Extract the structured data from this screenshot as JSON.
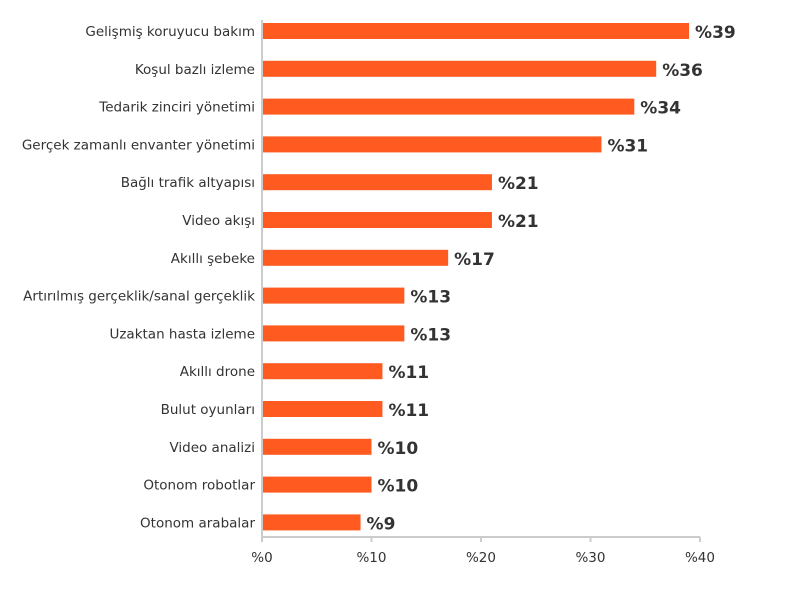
{
  "chart_data": {
    "type": "bar",
    "orientation": "horizontal",
    "categories": [
      "Gelişmiş koruyucu bakım",
      "Koşul bazlı izleme",
      "Tedarik zinciri yönetimi",
      "Gerçek zamanlı envanter yönetimi",
      "Bağlı trafik altyapısı",
      "Video akışı",
      "Akıllı şebeke",
      "Artırılmış gerçeklik/sanal gerçeklik",
      "Uzaktan hasta izleme",
      "Akıllı drone",
      "Bulut oyunları",
      "Video analizi",
      "Otonom robotlar",
      "Otonom arabalar"
    ],
    "values": [
      39,
      36,
      34,
      31,
      21,
      21,
      17,
      13,
      13,
      11,
      11,
      10,
      10,
      9
    ],
    "value_labels": [
      "%39",
      "%36",
      "%34",
      "%31",
      "%21",
      "%21",
      "%17",
      "%13",
      "%13",
      "%11",
      "%11",
      "%10",
      "%10",
      "%9"
    ],
    "xlim": [
      0,
      40
    ],
    "xticks": [
      0,
      10,
      20,
      30,
      40
    ],
    "xtick_labels": [
      "%0",
      "%10",
      "%20",
      "%30",
      "%40"
    ],
    "title": "",
    "xlabel": "",
    "ylabel": "",
    "grid": false,
    "colors": {
      "bar": "#FF5A1F",
      "axis": "#CCCCCC",
      "text": "#333333"
    }
  }
}
